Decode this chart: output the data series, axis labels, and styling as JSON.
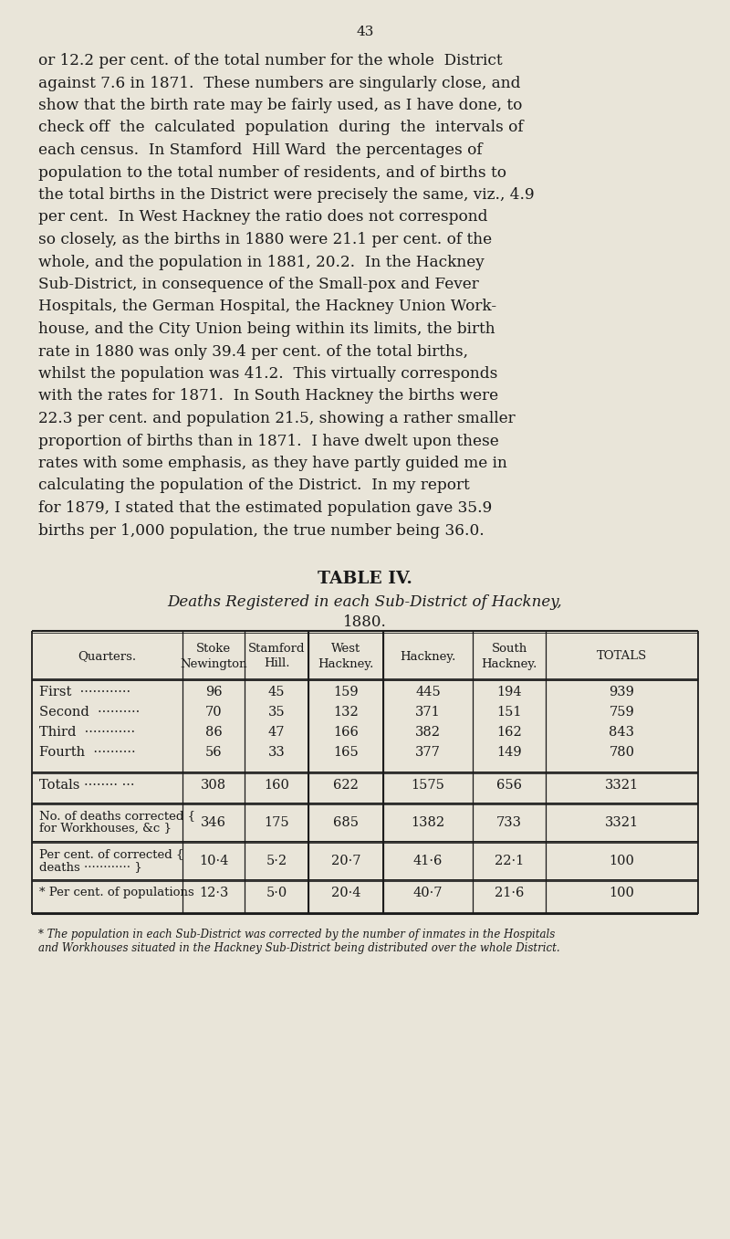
{
  "page_number": "43",
  "bg_color": "#e9e5d9",
  "text_color": "#1a1a1a",
  "body_lines": [
    "or 12.2 per cent. of the total number for the whole  District",
    "against 7.6 in 1871.  These numbers are singularly close, and",
    "show that the birth rate may be fairly used, as I have done, to",
    "check off  the  calculated  population  during  the  intervals of",
    "each census.  In Stamford  Hill Ward  the percentages of",
    "population to the total number of residents, and of births to",
    "the total births in the District were precisely the same, viz., 4.9",
    "per cent.  In West Hackney the ratio does not correspond",
    "so closely, as the births in 1880 were 21.1 per cent. of the",
    "whole, and the population in 1881, 20.2.  In the Hackney",
    "Sub-District, in consequence of the Small-pox and Fever",
    "Hospitals, the German Hospital, the Hackney Union Work-",
    "house, and the City Union being within its limits, the birth",
    "rate in 1880 was only 39.4 per cent. of the total births,",
    "whilst the population was 41.2.  This virtually corresponds",
    "with the rates for 1871.  In South Hackney the births were",
    "22.3 per cent. and population 21.5, showing a rather smaller",
    "proportion of births than in 1871.  I have dwelt upon these",
    "rates with some emphasis, as they have partly guided me in",
    "calculating the population of the District.  In my report",
    "for 1879, I stated that the estimated population gave 35.9",
    "births per 1,000 population, the true number being 36.0."
  ],
  "table_title": "TABLE IV.",
  "table_subtitle1": "Deaths Registered in each Sub-District of Hackney,",
  "table_subtitle2": "1880.",
  "col_headers": [
    "Quarters.",
    "Stoke\nNewington",
    "Stamford\nHill.",
    "West\nHackney.",
    "Hackney.",
    "South\nHackney.",
    "TOTALS"
  ],
  "quarters": [
    [
      "First  ············",
      96,
      45,
      159,
      445,
      194,
      939
    ],
    [
      "Second  ··········",
      70,
      35,
      132,
      371,
      151,
      759
    ],
    [
      "Third  ············",
      86,
      47,
      166,
      382,
      162,
      843
    ],
    [
      "Fourth  ··········",
      56,
      33,
      165,
      377,
      149,
      780
    ]
  ],
  "totals_row": [
    308,
    160,
    622,
    1575,
    656,
    3321
  ],
  "corrected_row_label1": "No. of deaths corrected ❴",
  "corrected_row_label2": "for Workhouses, &c ❵",
  "corrected_row": [
    346,
    175,
    685,
    1382,
    733,
    3321
  ],
  "pct_corrected_label1": "Per cent. of corrected ❴",
  "pct_corrected_label2": "deaths ············ ❵",
  "pct_corrected": [
    "10·4",
    "5·2",
    "20·7",
    "41·6",
    "22·1",
    "100"
  ],
  "pct_pop_label": "* Per cent. of populations",
  "pct_pop": [
    "12·3",
    "5·0",
    "20·4",
    "40·7",
    "21·6",
    "100"
  ],
  "footnote1": "* The population in each Sub-District was corrected by the number of inmates in the Hospitals",
  "footnote2": "and Workhouses situated in the Hackney Sub-District being distributed over the whole District."
}
